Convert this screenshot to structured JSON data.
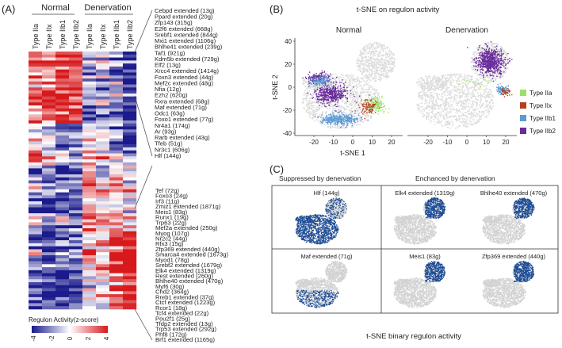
{
  "panel_labels": {
    "a": "(A)",
    "b": "(B)",
    "c": "(C)"
  },
  "colors": {
    "high": "#d7191c",
    "mid": "#ffffff",
    "low": "#1a1a8c",
    "typeIIa": "#9be06a",
    "typeIIx": "#b5401e",
    "typeIIb1": "#5b9bd5",
    "typeIIb2": "#6a2c9c",
    "background": "#dcdcdc",
    "binary_on": "#1f4e96"
  },
  "chart_data": [
    {
      "type": "heatmap",
      "groups": [
        "Normal",
        "Denervation"
      ],
      "columns": [
        "Type IIa",
        "Type IIx",
        "Type IIb1",
        "Type IIb2",
        "Type IIa",
        "Type IIx",
        "Type IIb1",
        "Type IIb2"
      ],
      "row_blocks": [
        {
          "name": "suppressed-by-denervation",
          "rows": 24,
          "mean_zscore": [
            1.4,
            1.5,
            1.8,
            1.9,
            -1.5,
            -1.0,
            -1.2,
            -2.6
          ]
        },
        {
          "name": "mixed",
          "rows": 14,
          "mean_zscore": [
            0.8,
            -0.5,
            -1.2,
            -1.3,
            0.6,
            0.4,
            -1.0,
            -2.0
          ]
        },
        {
          "name": "normal-low",
          "rows": 22,
          "mean_zscore": [
            -1.4,
            -1.8,
            -1.6,
            -1.4,
            1.2,
            0.2,
            0.5,
            0.1
          ]
        },
        {
          "name": "enhanced-by-denervation",
          "rows": 26,
          "mean_zscore": [
            -1.6,
            -2.0,
            -1.9,
            -1.5,
            0.4,
            0.2,
            2.2,
            2.6
          ]
        }
      ],
      "gene_list_top": [
        "Cebpd extended (13g)",
        "Ppard extended (20g)",
        "Zfp143 (315g)",
        "E2f6 extended (668g)",
        "Srebf1 extended (844g)",
        "Mxi1 extended (1106g)",
        "Bhlhe41 extended (239g)",
        "Taf1 (921g)",
        "Kdm5b extended (729g)",
        "Elf2 (13g)",
        "Xrcc4 extended (1414g)",
        "Foxn3 extended (44g)",
        "Mef2c extended (48g)",
        "Nfia (12g)",
        "Ezh2 (620g)",
        "Rxra extended (68g)",
        "Maf extended (71g)",
        "Odc1 (63g)",
        "Foxo1 extended (77g)",
        "Nr4a1 (174g)",
        "Ar (93g)",
        "Rarb extended (43g)",
        "Tfeb (51g)",
        "Nr3c1 (606g)",
        "Hlf (144g)"
      ],
      "gene_list_bottom": [
        "Tef (72g)",
        "Foxo3 (24g)",
        "Irf3 (11g)",
        "Zmiz1 extended (1871g)",
        "Meis1 (83g)",
        "Runx1 (19g)",
        "Trp63 (22g)",
        "Mef2a extended (250g)",
        "Myog (107g)",
        "Nr2c2 (44g)",
        "Rfx3 (15g)",
        "Zfp369 extended (440g)",
        "Smarca4 extended (1673g)",
        "Myod1 (78g)",
        "Srebf2 extended (1679g)",
        "Elk4 extended (1319g)",
        "Rest extended (260g)",
        "Bhlhe40 extended (470g)",
        "Myf6 (30g)",
        "Chd2 (364g)",
        "Rreb1 extended (37g)",
        "Ctcf extended (1223g)",
        "Rcor1 (18g)",
        "Tcf4 extended (22g)",
        "Pou2f1 (25g)",
        "Tfdp2 extended (13g)",
        "Trp53 extended (292g)",
        "Phf8 (172g)",
        "Brf1 extended (1165g)"
      ],
      "legend_title": "Regulon Activity(z-score)",
      "legend_ticks": [
        "-4",
        "-2",
        "0",
        "2",
        "4"
      ],
      "legend_range": [
        -4,
        4
      ]
    },
    {
      "type": "scatter",
      "title": "t-SNE on regulon activity",
      "facets": [
        "Normal",
        "Denervation"
      ],
      "xlabel": "t-SNE 1",
      "ylabel": "t-SNE 2",
      "xticks": [
        "-20",
        "-10",
        "0",
        "10",
        "20"
      ],
      "yticks": [
        "40",
        "20",
        "0",
        "-20",
        "-40"
      ],
      "xlim": [
        -28,
        25
      ],
      "ylim": [
        -40,
        42
      ],
      "legend": [
        "Type IIa",
        "Type IIx",
        "Type IIb1",
        "Type IIb2"
      ],
      "legend_position": "right",
      "clusters": {
        "Normal": [
          {
            "series": "Type IIb2",
            "center": [
              -11,
              -6
            ],
            "spread": [
              7,
              7
            ],
            "n": 900
          },
          {
            "series": "Type IIb2",
            "center": [
              -18,
              8
            ],
            "spread": [
              5,
              4
            ],
            "n": 300
          },
          {
            "series": "Type IIb1",
            "center": [
              -17,
              5
            ],
            "spread": [
              5,
              4
            ],
            "n": 200
          },
          {
            "series": "Type IIb1",
            "center": [
              -7,
              -28
            ],
            "spread": [
              8,
              4
            ],
            "n": 700
          },
          {
            "series": "Type IIa",
            "center": [
              12,
              -15
            ],
            "spread": [
              4,
              5
            ],
            "n": 300
          },
          {
            "series": "Type IIx",
            "center": [
              8,
              -17
            ],
            "spread": [
              4,
              6
            ],
            "n": 180
          }
        ],
        "Denervation": [
          {
            "series": "Type IIb2",
            "center": [
              12,
              22
            ],
            "spread": [
              6,
              9
            ],
            "n": 1300
          },
          {
            "series": "Type IIb1",
            "center": [
              18,
              -2
            ],
            "spread": [
              2.5,
              3
            ],
            "n": 160
          },
          {
            "series": "Type IIx",
            "center": [
              20,
              -4
            ],
            "spread": [
              2,
              2.5
            ],
            "n": 90
          },
          {
            "series": "Type IIa",
            "center": [
              5,
              4
            ],
            "spread": [
              8,
              3
            ],
            "n": 40
          }
        ]
      }
    },
    {
      "type": "scatter",
      "title": "t-SNE binary regulon activity",
      "column_headers": [
        "Suppressed by denervation",
        "Enchanced by denervation"
      ],
      "panels": [
        {
          "label": "Hlf (144g)",
          "active_region": "main"
        },
        {
          "label": "Elk4 extended (1319g)",
          "active_region": "top"
        },
        {
          "label": "Bhlhe40 extended (470g)",
          "active_region": "top"
        },
        {
          "label": "Maf extended (71g)",
          "active_region": "main-lower"
        },
        {
          "label": "Meis1 (83g)",
          "active_region": "top"
        },
        {
          "label": "Zfp369 extended (440g)",
          "active_region": "top"
        }
      ]
    }
  ]
}
